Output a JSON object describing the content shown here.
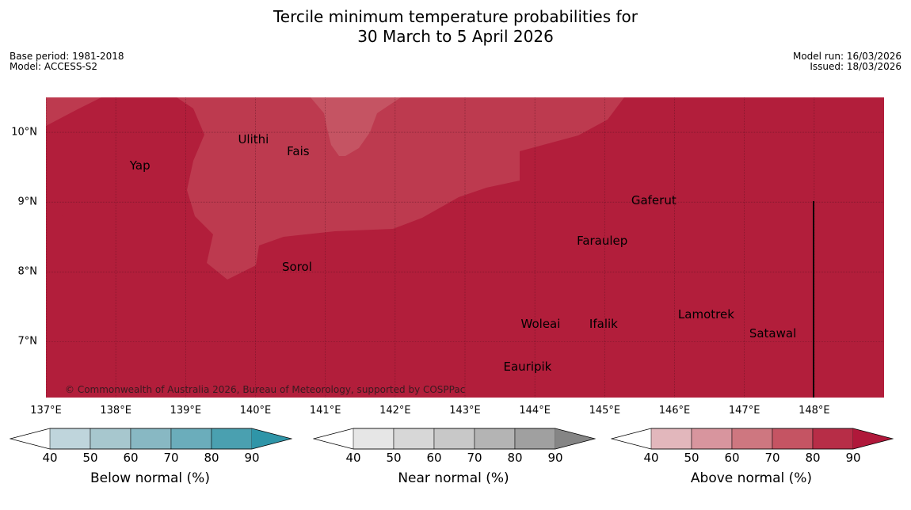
{
  "title_line1": "Tercile minimum temperature probabilities for",
  "title_line2": "30 March to 5 April 2026",
  "base_period": "Base period: 1981-2018",
  "model": "Model: ACCESS-S2",
  "model_run": "Model run: 16/03/2026",
  "issued": "Issued: 18/03/2026",
  "copyright": "© Commonwealth of Australia 2026, Bureau of Meteorology, supported by COSPPac",
  "map": {
    "lon_range": [
      137,
      149
    ],
    "lat_range": [
      6.2,
      10.5
    ],
    "lon_labels": [
      "137°E",
      "138°E",
      "139°E",
      "140°E",
      "141°E",
      "142°E",
      "143°E",
      "144°E",
      "145°E",
      "146°E",
      "147°E",
      "148°E"
    ],
    "lat_labels": [
      "10°N",
      "9°N",
      "8°N",
      "7°N"
    ],
    "colors": {
      "above_90": "#b21e3b",
      "above_80_90": "#bd3a4f",
      "above_70_80": "#c55463",
      "gridline": "#4a0f1c"
    },
    "places": [
      {
        "name": "Yap",
        "lon": 138.2,
        "lat": 9.52
      },
      {
        "name": "Ulithi",
        "lon": 139.75,
        "lat": 9.9
      },
      {
        "name": "Fais",
        "lon": 140.45,
        "lat": 9.73
      },
      {
        "name": "Gaferut",
        "lon": 145.38,
        "lat": 9.03
      },
      {
        "name": "Faraulep",
        "lon": 144.6,
        "lat": 8.45
      },
      {
        "name": "Sorol",
        "lon": 140.38,
        "lat": 8.07
      },
      {
        "name": "Lamotrek",
        "lon": 146.05,
        "lat": 7.39
      },
      {
        "name": "Woleai",
        "lon": 143.8,
        "lat": 7.25
      },
      {
        "name": "Ifalik",
        "lon": 144.78,
        "lat": 7.25
      },
      {
        "name": "Satawal",
        "lon": 147.07,
        "lat": 7.12
      },
      {
        "name": "Eauripik",
        "lon": 143.55,
        "lat": 6.64
      }
    ]
  },
  "colorbars": [
    {
      "title": "Below normal (%)",
      "colors": [
        "#ffffff",
        "#bfd5dc",
        "#a7c7ce",
        "#88b8c3",
        "#6badbb",
        "#4aa0b0",
        "#2f95a8"
      ],
      "ticks": [
        "40",
        "50",
        "60",
        "70",
        "80",
        "90"
      ]
    },
    {
      "title": "Near normal (%)",
      "colors": [
        "#ffffff",
        "#e6e6e6",
        "#d7d7d7",
        "#c8c8c8",
        "#b4b4b4",
        "#a0a0a0",
        "#858585"
      ],
      "ticks": [
        "40",
        "50",
        "60",
        "70",
        "80",
        "90"
      ]
    },
    {
      "title": "Above normal (%)",
      "colors": [
        "#ffffff",
        "#e2b7bc",
        "#d8959e",
        "#ce7780",
        "#c55463",
        "#b72d47",
        "#b0183a"
      ],
      "ticks": [
        "40",
        "50",
        "60",
        "70",
        "80",
        "90"
      ]
    }
  ]
}
